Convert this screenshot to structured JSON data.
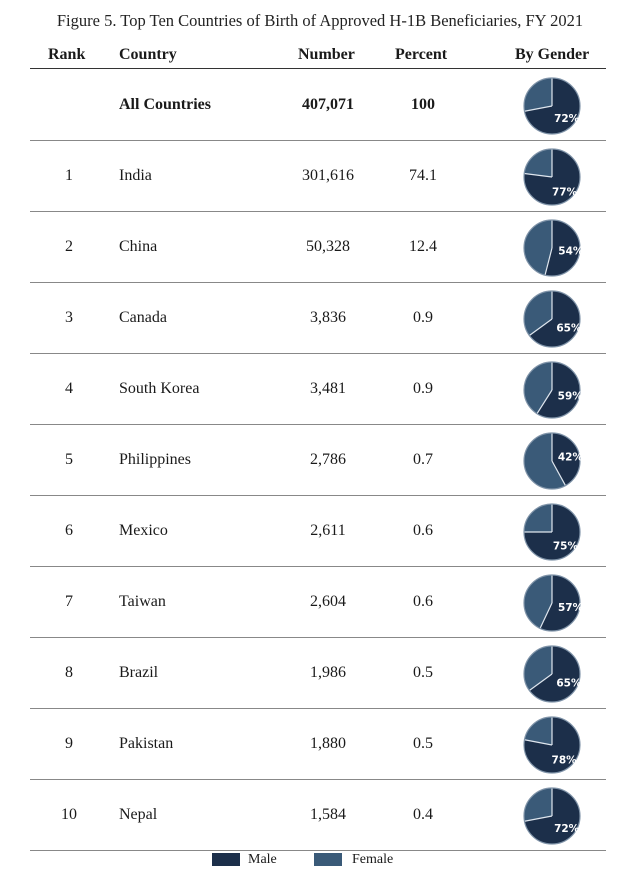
{
  "title": "Figure 5. Top Ten Countries of Birth of Approved H-1B Beneficiaries, FY 2021",
  "columns": {
    "rank": "Rank",
    "country": "Country",
    "number": "Number",
    "percent": "Percent",
    "gender": "By Gender"
  },
  "legend": {
    "male": "Male",
    "female": "Female"
  },
  "colors": {
    "male": "#1c2f4a",
    "female": "#3a5a78",
    "pie_outline": "#7f93a8"
  },
  "chart_data": {
    "type": "table",
    "title": "Figure 5. Top Ten Countries of Birth of Approved H-1B Beneficiaries, FY 2021",
    "columns": [
      "Rank",
      "Country",
      "Number",
      "Percent",
      "By Gender"
    ],
    "series": [
      {
        "name": "Male",
        "unit": "%"
      },
      {
        "name": "Female",
        "unit": "%"
      }
    ],
    "rows": [
      {
        "rank": "",
        "country": "All Countries",
        "number": "407,071",
        "percent": "100",
        "male_pct": 72,
        "male_label": "72%"
      },
      {
        "rank": "1",
        "country": "India",
        "number": "301,616",
        "percent": "74.1",
        "male_pct": 77,
        "male_label": "77%"
      },
      {
        "rank": "2",
        "country": "China",
        "number": "50,328",
        "percent": "12.4",
        "male_pct": 54,
        "male_label": "54%"
      },
      {
        "rank": "3",
        "country": "Canada",
        "number": "3,836",
        "percent": "0.9",
        "male_pct": 65,
        "male_label": "65%"
      },
      {
        "rank": "4",
        "country": "South Korea",
        "number": "3,481",
        "percent": "0.9",
        "male_pct": 59,
        "male_label": "59%"
      },
      {
        "rank": "5",
        "country": "Philippines",
        "number": "2,786",
        "percent": "0.7",
        "male_pct": 42,
        "male_label": "42%"
      },
      {
        "rank": "6",
        "country": "Mexico",
        "number": "2,611",
        "percent": "0.6",
        "male_pct": 75,
        "male_label": "75%"
      },
      {
        "rank": "7",
        "country": "Taiwan",
        "number": "2,604",
        "percent": "0.6",
        "male_pct": 57,
        "male_label": "57%"
      },
      {
        "rank": "8",
        "country": "Brazil",
        "number": "1,986",
        "percent": "0.5",
        "male_pct": 65,
        "male_label": "65%"
      },
      {
        "rank": "9",
        "country": "Pakistan",
        "number": "1,880",
        "percent": "0.5",
        "male_pct": 78,
        "male_label": "78%"
      },
      {
        "rank": "10",
        "country": "Nepal",
        "number": "1,584",
        "percent": "0.4",
        "male_pct": 72,
        "male_label": "72%"
      }
    ]
  }
}
